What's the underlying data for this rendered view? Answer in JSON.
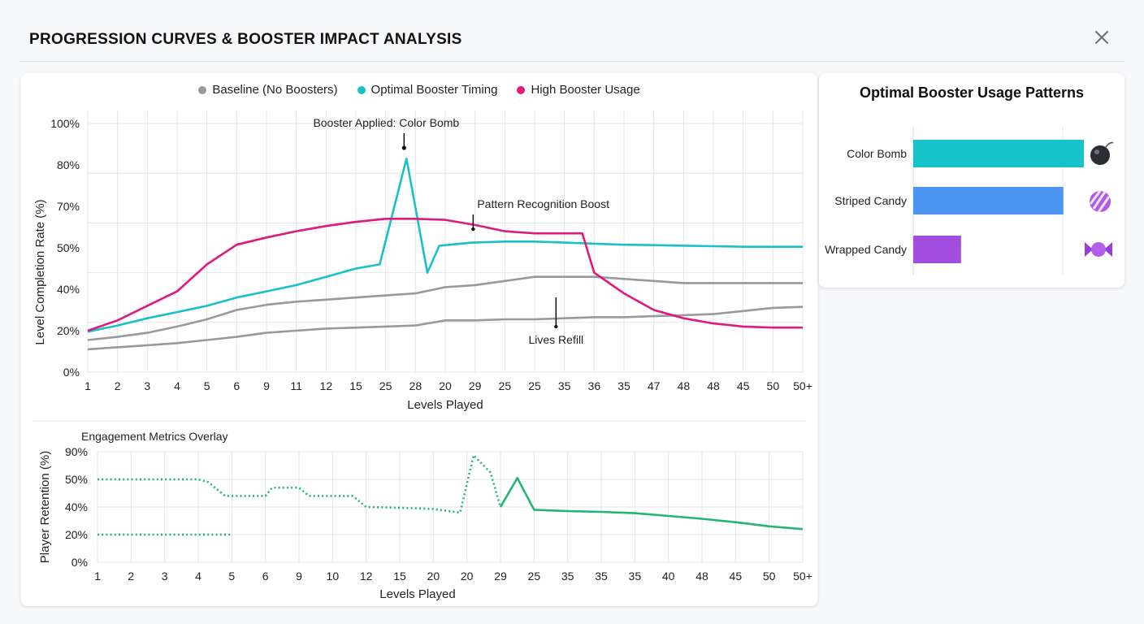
{
  "header": {
    "title": "PROGRESSION CURVES & BOOSTER IMPACT ANALYSIS",
    "close_icon": "close-icon"
  },
  "chart_data": [
    {
      "type": "line",
      "title": "",
      "xlabel": "Levels Played",
      "ylabel": "Level Completion Rate (%)",
      "categories": [
        "1",
        "2",
        "3",
        "4",
        "5",
        "6",
        "9",
        "11",
        "12",
        "15",
        "25",
        "28",
        "20",
        "29",
        "25",
        "25",
        "35",
        "36",
        "35",
        "47",
        "48",
        "48",
        "45",
        "50",
        "50+"
      ],
      "y_ticks": [
        "0%",
        "20%",
        "40%",
        "50%",
        "70%",
        "80%",
        "100%"
      ],
      "legend": {
        "position": "top",
        "entries": [
          {
            "name": "Baseline (No Boosters)",
            "color": "#999999"
          },
          {
            "name": "Optimal Booster Timing",
            "color": "#19c0cc"
          },
          {
            "name": "High Booster Usage",
            "color": "#e0197d"
          }
        ]
      },
      "series": [
        {
          "name": "Baseline (No Boosters)",
          "color": "#999999",
          "x": [
            0,
            1,
            2,
            3,
            4,
            5,
            6,
            7,
            8,
            9,
            10,
            11,
            12,
            13,
            14,
            15,
            16,
            17,
            18,
            19,
            20,
            21,
            22,
            23,
            24
          ],
          "values": [
            15.5,
            17,
            19,
            22,
            25.5,
            30,
            32.5,
            34,
            35,
            36,
            37,
            38,
            40.5,
            41,
            42,
            43,
            43,
            43,
            42.5,
            42,
            41.5,
            41.5,
            41.5,
            41.5,
            41.5
          ]
        },
        {
          "name": "Baseline (No Boosters)",
          "color": "#999999",
          "x": [
            0,
            1,
            2,
            3,
            4,
            5,
            6,
            7,
            8,
            9,
            10,
            11,
            12,
            13,
            14,
            15,
            16,
            17,
            18,
            19,
            20,
            21,
            22,
            23,
            24
          ],
          "values": [
            11,
            12,
            13,
            14,
            15.5,
            17,
            19,
            20,
            21,
            21.5,
            22,
            22.5,
            25,
            25,
            25.5,
            25.5,
            26,
            26.5,
            26.5,
            27,
            27.5,
            28,
            29.5,
            31,
            31.5
          ]
        },
        {
          "name": "Optimal Booster Timing",
          "color": "#19c0cc",
          "x": [
            0,
            1,
            2,
            3,
            4,
            5,
            6,
            7,
            8,
            9,
            9.8,
            10.7,
            11.4,
            11.8,
            12.9,
            14,
            15,
            16,
            17,
            18,
            19,
            20,
            21,
            22,
            23,
            24
          ],
          "values": [
            19.5,
            22.5,
            26,
            29,
            32,
            36,
            39,
            41,
            43,
            45,
            46,
            83,
            44,
            51,
            52.5,
            53,
            53,
            52.5,
            52,
            51.5,
            51.3,
            51,
            50.8,
            50.5,
            50.5,
            50.5
          ]
        },
        {
          "name": "High Booster Usage",
          "color": "#e0197d",
          "x": [
            0,
            1,
            2,
            3,
            4,
            5,
            6,
            7,
            8,
            9,
            10,
            11,
            12,
            13,
            14,
            15,
            16,
            16.6,
            17,
            18,
            19,
            20,
            21,
            22,
            23,
            24
          ],
          "values": [
            20,
            25,
            32,
            39,
            46,
            51.5,
            55,
            58,
            60.5,
            62.5,
            64,
            64,
            63.5,
            61,
            58,
            57,
            57,
            57,
            44,
            38,
            30,
            26,
            23.5,
            22,
            21.5,
            21.5
          ]
        }
      ],
      "annotations": [
        {
          "text": "Booster Applied: Color Bomb",
          "x": 11,
          "y": 83
        },
        {
          "text": "Pattern Recognition Boost",
          "x": 12.5,
          "y": 61
        },
        {
          "text": "Lives Refill",
          "x": 16.7,
          "y": 26
        }
      ],
      "grid": true
    },
    {
      "type": "line",
      "title": "Engagement Metrics Overlay",
      "xlabel": "Levels Played",
      "ylabel": "Player Retention (%)",
      "categories": [
        "1",
        "2",
        "3",
        "4",
        "5",
        "6",
        "9",
        "10",
        "12",
        "15",
        "20",
        "20",
        "29",
        "25",
        "35",
        "35",
        "35",
        "40",
        "48",
        "45",
        "50",
        "50+"
      ],
      "y_ticks": [
        "0%",
        "20%",
        "40%",
        "50%",
        "90%"
      ],
      "series": [
        {
          "name": "",
          "style": "dotted",
          "color": "#22b573",
          "x": [
            0,
            1,
            2,
            3,
            3.3,
            3.8,
            4,
            5,
            5.2,
            5.5,
            6,
            6.3,
            7,
            7.6,
            8,
            9,
            10,
            10.8,
            11.2,
            11.7,
            12
          ],
          "values": [
            50,
            50,
            50,
            50,
            49,
            44,
            44,
            44,
            47,
            47,
            47,
            44,
            44,
            44,
            40,
            39.5,
            38.5,
            36,
            85,
            60,
            40
          ]
        },
        {
          "name": "",
          "style": "dotted",
          "color": "#22b573",
          "x": [
            0,
            1,
            2,
            3,
            4
          ],
          "values": [
            20,
            20,
            20,
            20,
            20
          ]
        },
        {
          "name": "",
          "style": "solid",
          "color": "#22b573",
          "x": [
            12,
            12.5,
            13,
            14,
            15,
            16,
            17,
            18,
            19,
            20,
            21
          ],
          "values": [
            40,
            52,
            38,
            37,
            36.5,
            35.5,
            33.5,
            31.5,
            29,
            26,
            24
          ]
        }
      ],
      "grid": true
    },
    {
      "type": "bar",
      "orientation": "horizontal",
      "title": "Optimal Booster Usage Patterns",
      "categories": [
        "Color Bomb",
        "Striped Candy",
        "Wrapped Candy"
      ],
      "values": [
        100,
        88,
        28
      ],
      "colors": [
        "#17c3cb",
        "#4d95f3",
        "#a14ee0"
      ],
      "icons": [
        "bomb-icon",
        "striped-candy-icon",
        "wrapped-candy-icon"
      ]
    }
  ]
}
